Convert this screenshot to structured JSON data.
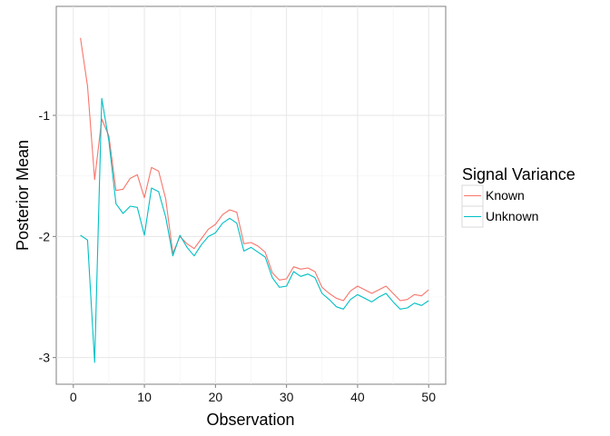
{
  "chart_data": {
    "type": "line",
    "title": "",
    "xlabel": "Observation",
    "ylabel": "Posterior Mean",
    "xlim": [
      -2.4,
      52.4
    ],
    "ylim": [
      -3.22,
      -0.1
    ],
    "xticks": [
      0,
      10,
      20,
      30,
      40,
      50
    ],
    "yticks": [
      -1,
      -2,
      -3
    ],
    "grid": true,
    "legend": {
      "title": "Signal Variance",
      "placement": "right"
    },
    "x": [
      1,
      2,
      3,
      4,
      5,
      6,
      7,
      8,
      9,
      10,
      11,
      12,
      13,
      14,
      15,
      16,
      17,
      18,
      19,
      20,
      21,
      22,
      23,
      24,
      25,
      26,
      27,
      28,
      29,
      30,
      31,
      32,
      33,
      34,
      35,
      36,
      37,
      38,
      39,
      40,
      41,
      42,
      43,
      44,
      45,
      46,
      47,
      48,
      49,
      50
    ],
    "series": [
      {
        "name": "Known",
        "color": "#F8766D",
        "values": [
          -0.36,
          -0.76,
          -1.53,
          -1.03,
          -1.17,
          -1.62,
          -1.61,
          -1.52,
          -1.49,
          -1.68,
          -1.43,
          -1.46,
          -1.69,
          -2.14,
          -2.0,
          -2.06,
          -2.1,
          -2.02,
          -1.94,
          -1.9,
          -1.82,
          -1.78,
          -1.8,
          -2.06,
          -2.05,
          -2.08,
          -2.13,
          -2.3,
          -2.36,
          -2.35,
          -2.25,
          -2.27,
          -2.26,
          -2.29,
          -2.42,
          -2.47,
          -2.51,
          -2.53,
          -2.45,
          -2.41,
          -2.44,
          -2.47,
          -2.44,
          -2.41,
          -2.47,
          -2.53,
          -2.52,
          -2.48,
          -2.49,
          -2.44
        ]
      },
      {
        "name": "Unknown",
        "color": "#00BFC4",
        "values": [
          -1.99,
          -2.03,
          -3.04,
          -0.86,
          -1.21,
          -1.73,
          -1.81,
          -1.75,
          -1.76,
          -1.99,
          -1.6,
          -1.63,
          -1.84,
          -2.16,
          -1.99,
          -2.09,
          -2.16,
          -2.07,
          -2.0,
          -1.97,
          -1.89,
          -1.85,
          -1.89,
          -2.12,
          -2.09,
          -2.13,
          -2.17,
          -2.34,
          -2.42,
          -2.41,
          -2.29,
          -2.33,
          -2.31,
          -2.34,
          -2.47,
          -2.52,
          -2.58,
          -2.6,
          -2.52,
          -2.48,
          -2.51,
          -2.54,
          -2.5,
          -2.47,
          -2.54,
          -2.6,
          -2.59,
          -2.55,
          -2.57,
          -2.53
        ]
      }
    ]
  }
}
